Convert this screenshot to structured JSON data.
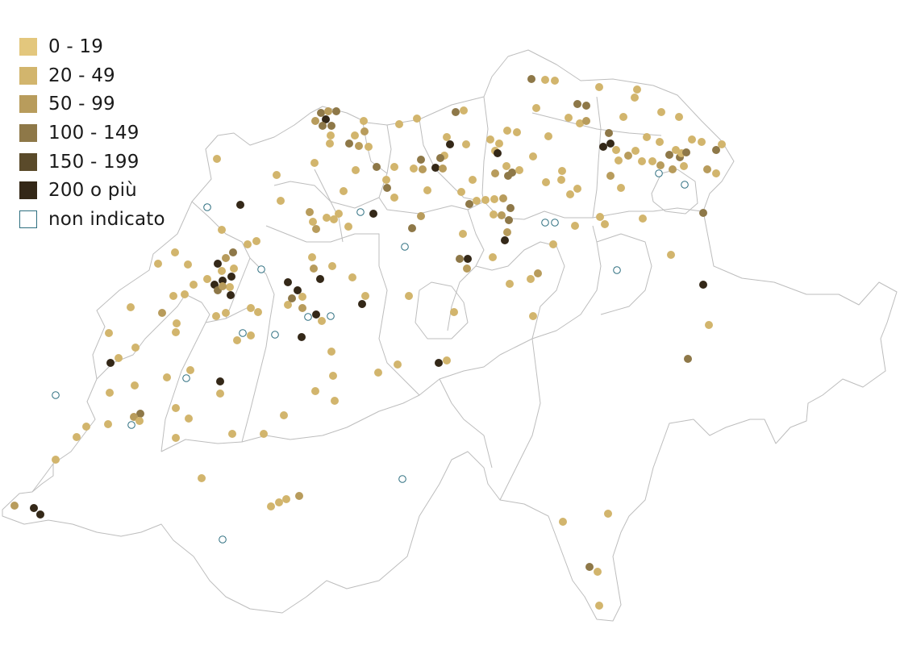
{
  "legend": {
    "items": [
      {
        "label": "0 - 19",
        "color": "#e3c77d",
        "hollow": false
      },
      {
        "label": "20 - 49",
        "color": "#d2b56d",
        "hollow": false
      },
      {
        "label": "50 - 99",
        "color": "#b89c5c",
        "hollow": false
      },
      {
        "label": "100 - 149",
        "color": "#8e7848",
        "hollow": false
      },
      {
        "label": "150 - 199",
        "color": "#5a4a2a",
        "hollow": false
      },
      {
        "label": "200 o più",
        "color": "#342818",
        "hollow": false
      },
      {
        "label": "non indicato",
        "color": "#2e6f80",
        "hollow": true
      }
    ]
  }
}
